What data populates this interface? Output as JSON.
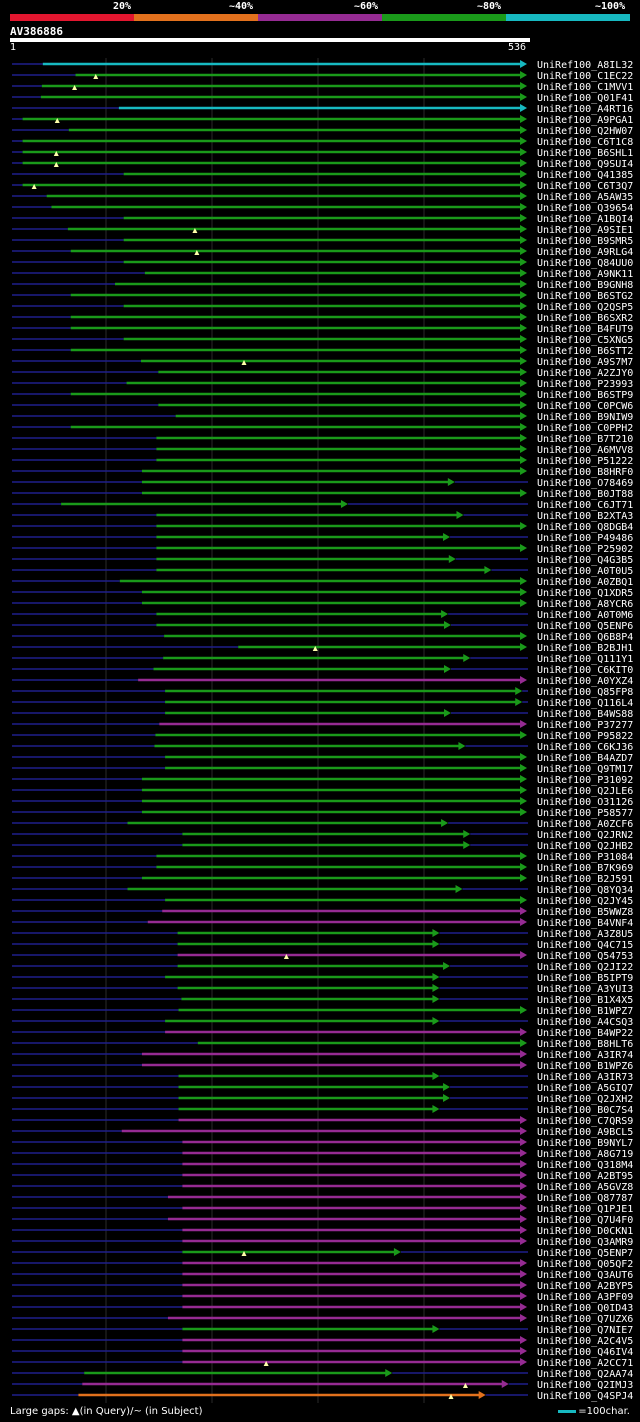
{
  "legend": {
    "labels": [
      "20%",
      "~40%",
      "~60%",
      "~80%",
      "~100%"
    ],
    "colors": [
      "#e3162f",
      "#e2711d",
      "#962b93",
      "#1a9a1a",
      "#17b9c1"
    ]
  },
  "query": {
    "id": "AV386886",
    "start_label": "1",
    "end_label": "536",
    "length": 536
  },
  "footer": {
    "gaps_text": "Large gaps: ▲(in Query)/~ (in Subject)",
    "scale_text": "=100char."
  },
  "chart_data": {
    "type": "alignment-overview",
    "title": "AV386886",
    "query_length": 536,
    "identity_bins": [
      "20%",
      "~40%",
      "~60%",
      "~80%",
      "~100%"
    ],
    "hits": [
      {
        "id": "UniRef100_A8IL32",
        "start": 33,
        "end": 536,
        "bin": 4,
        "gaps": []
      },
      {
        "id": "UniRef100_C1EC22",
        "start": 67,
        "end": 536,
        "bin": 3,
        "gaps": [
          88
        ]
      },
      {
        "id": "UniRef100_C1MVV1",
        "start": 32,
        "end": 536,
        "bin": 3,
        "gaps": [
          66
        ]
      },
      {
        "id": "UniRef100_Q01F41",
        "start": 31,
        "end": 536,
        "bin": 3,
        "gaps": []
      },
      {
        "id": "UniRef100_A4RT16",
        "start": 112,
        "end": 536,
        "bin": 4,
        "gaps": []
      },
      {
        "id": "UniRef100_A9PGA1",
        "start": 12,
        "end": 536,
        "bin": 3,
        "gaps": [
          48
        ]
      },
      {
        "id": "UniRef100_Q2HW07",
        "start": 60,
        "end": 536,
        "bin": 3,
        "gaps": []
      },
      {
        "id": "UniRef100_C6T1C8",
        "start": 12,
        "end": 536,
        "bin": 3,
        "gaps": []
      },
      {
        "id": "UniRef100_B6SHL1",
        "start": 12,
        "end": 536,
        "bin": 3,
        "gaps": [
          47
        ]
      },
      {
        "id": "UniRef100_Q9SUI4",
        "start": 12,
        "end": 536,
        "bin": 3,
        "gaps": [
          47
        ]
      },
      {
        "id": "UniRef100_Q41385",
        "start": 117,
        "end": 536,
        "bin": 3,
        "gaps": []
      },
      {
        "id": "UniRef100_C6T3Q7",
        "start": 12,
        "end": 536,
        "bin": 3,
        "gaps": [
          24
        ]
      },
      {
        "id": "UniRef100_A5AW35",
        "start": 37,
        "end": 536,
        "bin": 3,
        "gaps": []
      },
      {
        "id": "UniRef100_Q39654",
        "start": 42,
        "end": 536,
        "bin": 3,
        "gaps": []
      },
      {
        "id": "UniRef100_A1BQI4",
        "start": 117,
        "end": 536,
        "bin": 3,
        "gaps": []
      },
      {
        "id": "UniRef100_A9SIE1",
        "start": 59,
        "end": 536,
        "bin": 3,
        "gaps": [
          191
        ]
      },
      {
        "id": "UniRef100_B9SMR5",
        "start": 117,
        "end": 536,
        "bin": 3,
        "gaps": []
      },
      {
        "id": "UniRef100_A9RLG4",
        "start": 62,
        "end": 536,
        "bin": 3,
        "gaps": [
          193
        ]
      },
      {
        "id": "UniRef100_Q84UU0",
        "start": 117,
        "end": 536,
        "bin": 3,
        "gaps": []
      },
      {
        "id": "UniRef100_A9NK11",
        "start": 139,
        "end": 536,
        "bin": 3,
        "gaps": []
      },
      {
        "id": "UniRef100_B9GNH8",
        "start": 108,
        "end": 536,
        "bin": 3,
        "gaps": []
      },
      {
        "id": "UniRef100_B6STG2",
        "start": 62,
        "end": 536,
        "bin": 3,
        "gaps": []
      },
      {
        "id": "UniRef100_Q2QSP5",
        "start": 117,
        "end": 536,
        "bin": 3,
        "gaps": []
      },
      {
        "id": "UniRef100_B6SXR2",
        "start": 62,
        "end": 536,
        "bin": 3,
        "gaps": []
      },
      {
        "id": "UniRef100_B4FUT9",
        "start": 62,
        "end": 536,
        "bin": 3,
        "gaps": []
      },
      {
        "id": "UniRef100_C5XNG5",
        "start": 117,
        "end": 536,
        "bin": 3,
        "gaps": []
      },
      {
        "id": "UniRef100_B6STT2",
        "start": 62,
        "end": 536,
        "bin": 3,
        "gaps": []
      },
      {
        "id": "UniRef100_A9S7M7",
        "start": 135,
        "end": 536,
        "bin": 3,
        "gaps": [
          242
        ]
      },
      {
        "id": "UniRef100_A2ZJY0",
        "start": 153,
        "end": 536,
        "bin": 3,
        "gaps": []
      },
      {
        "id": "UniRef100_P23993",
        "start": 120,
        "end": 536,
        "bin": 3,
        "gaps": []
      },
      {
        "id": "UniRef100_B6STP9",
        "start": 62,
        "end": 536,
        "bin": 3,
        "gaps": []
      },
      {
        "id": "UniRef100_C0PCW6",
        "start": 153,
        "end": 536,
        "bin": 3,
        "gaps": []
      },
      {
        "id": "UniRef100_B9NIW9",
        "start": 171,
        "end": 536,
        "bin": 3,
        "gaps": []
      },
      {
        "id": "UniRef100_C0PPH2",
        "start": 62,
        "end": 536,
        "bin": 3,
        "gaps": []
      },
      {
        "id": "UniRef100_B7T210",
        "start": 151,
        "end": 536,
        "bin": 3,
        "gaps": []
      },
      {
        "id": "UniRef100_A6MVV8",
        "start": 151,
        "end": 536,
        "bin": 3,
        "gaps": []
      },
      {
        "id": "UniRef100_P51222",
        "start": 151,
        "end": 536,
        "bin": 3,
        "gaps": []
      },
      {
        "id": "UniRef100_B8HRF0",
        "start": 136,
        "end": 536,
        "bin": 3,
        "gaps": []
      },
      {
        "id": "UniRef100_O78469",
        "start": 136,
        "end": 461,
        "bin": 3,
        "gaps": []
      },
      {
        "id": "UniRef100_B0JT88",
        "start": 136,
        "end": 536,
        "bin": 3,
        "gaps": []
      },
      {
        "id": "UniRef100_C6JT71",
        "start": 52,
        "end": 350,
        "bin": 3,
        "gaps": []
      },
      {
        "id": "UniRef100_B2XTA3",
        "start": 151,
        "end": 470,
        "bin": 3,
        "gaps": []
      },
      {
        "id": "UniRef100_Q8DGB4",
        "start": 151,
        "end": 536,
        "bin": 3,
        "gaps": []
      },
      {
        "id": "UniRef100_P49486",
        "start": 151,
        "end": 456,
        "bin": 3,
        "gaps": []
      },
      {
        "id": "UniRef100_P25902",
        "start": 151,
        "end": 536,
        "bin": 3,
        "gaps": []
      },
      {
        "id": "UniRef100_Q4G3B5",
        "start": 151,
        "end": 462,
        "bin": 3,
        "gaps": []
      },
      {
        "id": "UniRef100_A0T0U5",
        "start": 151,
        "end": 499,
        "bin": 3,
        "gaps": []
      },
      {
        "id": "UniRef100_A0ZBQ1",
        "start": 113,
        "end": 536,
        "bin": 3,
        "gaps": []
      },
      {
        "id": "UniRef100_Q1XDR5",
        "start": 136,
        "end": 536,
        "bin": 3,
        "gaps": []
      },
      {
        "id": "UniRef100_A8YCR6",
        "start": 136,
        "end": 536,
        "bin": 3,
        "gaps": []
      },
      {
        "id": "UniRef100_A0T0M6",
        "start": 151,
        "end": 454,
        "bin": 3,
        "gaps": []
      },
      {
        "id": "UniRef100_Q5ENP6",
        "start": 151,
        "end": 457,
        "bin": 3,
        "gaps": []
      },
      {
        "id": "UniRef100_Q6B8P4",
        "start": 159,
        "end": 536,
        "bin": 3,
        "gaps": []
      },
      {
        "id": "UniRef100_B2BJH1",
        "start": 236,
        "end": 536,
        "bin": 3,
        "gaps": [
          316
        ]
      },
      {
        "id": "UniRef100_Q111Y1",
        "start": 158,
        "end": 477,
        "bin": 3,
        "gaps": []
      },
      {
        "id": "UniRef100_C6KIT0",
        "start": 148,
        "end": 457,
        "bin": 3,
        "gaps": []
      },
      {
        "id": "UniRef100_A0YXZ4",
        "start": 132,
        "end": 536,
        "bin": 2,
        "gaps": []
      },
      {
        "id": "UniRef100_Q85FP8",
        "start": 160,
        "end": 531,
        "bin": 3,
        "gaps": []
      },
      {
        "id": "UniRef100_Q116L4",
        "start": 160,
        "end": 531,
        "bin": 3,
        "gaps": []
      },
      {
        "id": "UniRef100_B4WS88",
        "start": 160,
        "end": 457,
        "bin": 3,
        "gaps": []
      },
      {
        "id": "UniRef100_P37277",
        "start": 154,
        "end": 536,
        "bin": 2,
        "gaps": []
      },
      {
        "id": "UniRef100_P95822",
        "start": 150,
        "end": 536,
        "bin": 3,
        "gaps": []
      },
      {
        "id": "UniRef100_C6KJ36",
        "start": 149,
        "end": 472,
        "bin": 3,
        "gaps": []
      },
      {
        "id": "UniRef100_B4AZD7",
        "start": 160,
        "end": 536,
        "bin": 3,
        "gaps": []
      },
      {
        "id": "UniRef100_Q9TM17",
        "start": 160,
        "end": 536,
        "bin": 3,
        "gaps": []
      },
      {
        "id": "UniRef100_P31092",
        "start": 136,
        "end": 536,
        "bin": 3,
        "gaps": []
      },
      {
        "id": "UniRef100_Q2JLE6",
        "start": 136,
        "end": 536,
        "bin": 3,
        "gaps": []
      },
      {
        "id": "UniRef100_O31126",
        "start": 136,
        "end": 536,
        "bin": 3,
        "gaps": []
      },
      {
        "id": "UniRef100_P58577",
        "start": 136,
        "end": 536,
        "bin": 3,
        "gaps": []
      },
      {
        "id": "UniRef100_A0ZCF6",
        "start": 121,
        "end": 454,
        "bin": 3,
        "gaps": []
      },
      {
        "id": "UniRef100_Q2JRN2",
        "start": 178,
        "end": 477,
        "bin": 3,
        "gaps": []
      },
      {
        "id": "UniRef100_Q2JHB2",
        "start": 178,
        "end": 477,
        "bin": 3,
        "gaps": []
      },
      {
        "id": "UniRef100_P31084",
        "start": 151,
        "end": 536,
        "bin": 3,
        "gaps": []
      },
      {
        "id": "UniRef100_B7K969",
        "start": 151,
        "end": 536,
        "bin": 3,
        "gaps": []
      },
      {
        "id": "UniRef100_B2J591",
        "start": 136,
        "end": 536,
        "bin": 3,
        "gaps": []
      },
      {
        "id": "UniRef100_Q8YQ34",
        "start": 121,
        "end": 469,
        "bin": 3,
        "gaps": []
      },
      {
        "id": "UniRef100_Q2JY45",
        "start": 160,
        "end": 536,
        "bin": 3,
        "gaps": []
      },
      {
        "id": "UniRef100_B5WWZ8",
        "start": 157,
        "end": 536,
        "bin": 2,
        "gaps": []
      },
      {
        "id": "UniRef100_B4VNF4",
        "start": 142,
        "end": 536,
        "bin": 2,
        "gaps": []
      },
      {
        "id": "UniRef100_A3Z8U5",
        "start": 173,
        "end": 445,
        "bin": 3,
        "gaps": []
      },
      {
        "id": "UniRef100_Q4C715",
        "start": 173,
        "end": 445,
        "bin": 3,
        "gaps": []
      },
      {
        "id": "UniRef100_Q54753",
        "start": 173,
        "end": 536,
        "bin": 2,
        "gaps": [
          286
        ]
      },
      {
        "id": "UniRef100_Q2JI22",
        "start": 173,
        "end": 456,
        "bin": 3,
        "gaps": []
      },
      {
        "id": "UniRef100_B5IPT9",
        "start": 160,
        "end": 445,
        "bin": 3,
        "gaps": []
      },
      {
        "id": "UniRef100_A3YUI3",
        "start": 173,
        "end": 445,
        "bin": 3,
        "gaps": []
      },
      {
        "id": "UniRef100_B1X4X5",
        "start": 177,
        "end": 445,
        "bin": 3,
        "gaps": []
      },
      {
        "id": "UniRef100_B1WPZ7",
        "start": 174,
        "end": 536,
        "bin": 3,
        "gaps": []
      },
      {
        "id": "UniRef100_A4CSQ3",
        "start": 160,
        "end": 445,
        "bin": 3,
        "gaps": []
      },
      {
        "id": "UniRef100_B4WP22",
        "start": 160,
        "end": 536,
        "bin": 2,
        "gaps": []
      },
      {
        "id": "UniRef100_B8HLT6",
        "start": 194,
        "end": 536,
        "bin": 3,
        "gaps": []
      },
      {
        "id": "UniRef100_A3IR74",
        "start": 136,
        "end": 536,
        "bin": 2,
        "gaps": []
      },
      {
        "id": "UniRef100_B1WPZ6",
        "start": 136,
        "end": 536,
        "bin": 2,
        "gaps": []
      },
      {
        "id": "UniRef100_A3IR73",
        "start": 174,
        "end": 445,
        "bin": 3,
        "gaps": []
      },
      {
        "id": "UniRef100_A5GIQ7",
        "start": 174,
        "end": 456,
        "bin": 3,
        "gaps": []
      },
      {
        "id": "UniRef100_Q2JXH2",
        "start": 174,
        "end": 456,
        "bin": 3,
        "gaps": []
      },
      {
        "id": "UniRef100_B0C7S4",
        "start": 174,
        "end": 445,
        "bin": 3,
        "gaps": []
      },
      {
        "id": "UniRef100_C7QRS9",
        "start": 174,
        "end": 536,
        "bin": 2,
        "gaps": []
      },
      {
        "id": "UniRef100_A9BCL5",
        "start": 115,
        "end": 536,
        "bin": 2,
        "gaps": []
      },
      {
        "id": "UniRef100_B9NYL7",
        "start": 178,
        "end": 536,
        "bin": 2,
        "gaps": []
      },
      {
        "id": "UniRef100_A8G719",
        "start": 178,
        "end": 536,
        "bin": 2,
        "gaps": []
      },
      {
        "id": "UniRef100_Q318M4",
        "start": 178,
        "end": 536,
        "bin": 2,
        "gaps": []
      },
      {
        "id": "UniRef100_A2BT95",
        "start": 178,
        "end": 536,
        "bin": 2,
        "gaps": []
      },
      {
        "id": "UniRef100_A5GVZ8",
        "start": 178,
        "end": 536,
        "bin": 2,
        "gaps": []
      },
      {
        "id": "UniRef100_Q87787",
        "start": 163,
        "end": 536,
        "bin": 2,
        "gaps": []
      },
      {
        "id": "UniRef100_Q1PJE1",
        "start": 178,
        "end": 536,
        "bin": 2,
        "gaps": []
      },
      {
        "id": "UniRef100_Q7U4F0",
        "start": 163,
        "end": 536,
        "bin": 2,
        "gaps": []
      },
      {
        "id": "UniRef100_D0CKN1",
        "start": 178,
        "end": 536,
        "bin": 2,
        "gaps": []
      },
      {
        "id": "UniRef100_Q3AMR9",
        "start": 178,
        "end": 536,
        "bin": 2,
        "gaps": []
      },
      {
        "id": "UniRef100_Q5ENP7",
        "start": 178,
        "end": 405,
        "bin": 3,
        "gaps": [
          242
        ]
      },
      {
        "id": "UniRef100_Q05QF2",
        "start": 178,
        "end": 536,
        "bin": 2,
        "gaps": []
      },
      {
        "id": "UniRef100_Q3AUT6",
        "start": 178,
        "end": 536,
        "bin": 2,
        "gaps": []
      },
      {
        "id": "UniRef100_A2BYP5",
        "start": 178,
        "end": 536,
        "bin": 2,
        "gaps": []
      },
      {
        "id": "UniRef100_A3PF09",
        "start": 178,
        "end": 536,
        "bin": 2,
        "gaps": []
      },
      {
        "id": "UniRef100_Q0ID43",
        "start": 178,
        "end": 536,
        "bin": 2,
        "gaps": []
      },
      {
        "id": "UniRef100_Q7UZX6",
        "start": 163,
        "end": 536,
        "bin": 2,
        "gaps": []
      },
      {
        "id": "UniRef100_Q7NIE7",
        "start": 178,
        "end": 445,
        "bin": 3,
        "gaps": []
      },
      {
        "id": "UniRef100_A2C4V5",
        "start": 178,
        "end": 536,
        "bin": 2,
        "gaps": []
      },
      {
        "id": "UniRef100_Q46IV4",
        "start": 178,
        "end": 536,
        "bin": 2,
        "gaps": []
      },
      {
        "id": "UniRef100_A2CC71",
        "start": 178,
        "end": 536,
        "bin": 2,
        "gaps": [
          265
        ]
      },
      {
        "id": "UniRef100_Q2AA74",
        "start": 76,
        "end": 396,
        "bin": 3,
        "gaps": []
      },
      {
        "id": "UniRef100_Q2IMJ3",
        "start": 74,
        "end": 517,
        "bin": 2,
        "gaps": [
          472
        ]
      },
      {
        "id": "UniRef100_Q4SPJ4",
        "start": 70,
        "end": 493,
        "bin": 1,
        "gaps": [
          457
        ]
      }
    ]
  }
}
